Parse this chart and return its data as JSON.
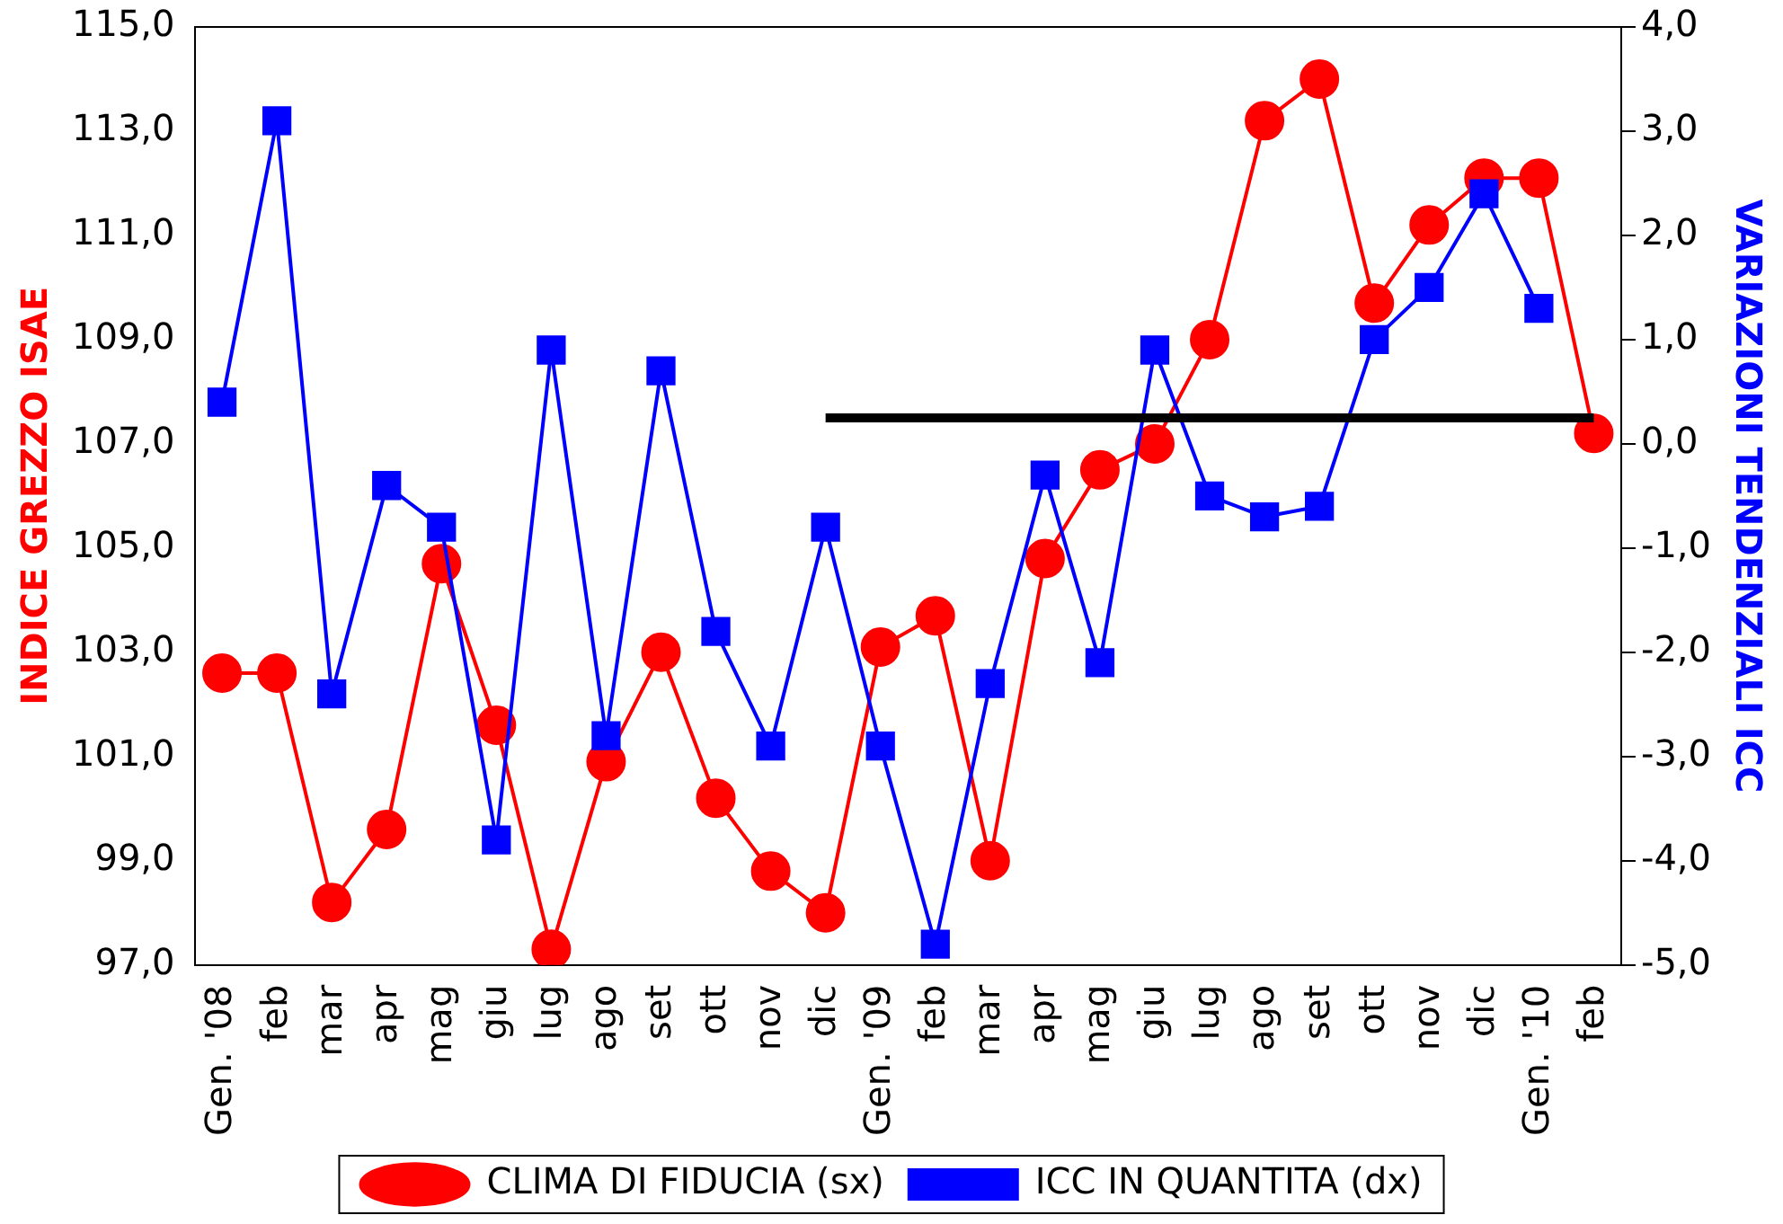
{
  "chart_data": {
    "type": "line",
    "ylabel": "INDICE GREZZO ISAE",
    "y2label": "VARIAZIONI TENDENZIALI ICC",
    "categories": [
      "Gen. '08",
      "feb",
      "mar",
      "apr",
      "mag",
      "giu",
      "lug",
      "ago",
      "set",
      "ott",
      "nov",
      "dic",
      "Gen. '09",
      "feb",
      "mar",
      "apr",
      "mag",
      "giu",
      "lug",
      "ago",
      "set",
      "ott",
      "nov",
      "dic",
      "Gen. '10",
      "feb"
    ],
    "series": [
      {
        "name": "CLIMA DI FIDUCIA (sx)",
        "color": "#ff0000",
        "marker": "circle",
        "values": [
          102.6,
          102.6,
          98.2,
          99.6,
          104.7,
          101.6,
          97.3,
          100.9,
          103.0,
          100.2,
          98.8,
          98.0,
          103.1,
          103.7,
          99.0,
          104.8,
          106.5,
          107.0,
          109.0,
          113.2,
          114.0,
          109.7,
          111.2,
          112.1,
          112.1,
          107.2
        ]
      },
      {
        "name": "ICC IN QUANTITA (dx)",
        "color": "#0000ff",
        "marker": "square",
        "axis": "y2",
        "values": [
          0.4,
          3.1,
          -2.4,
          -0.4,
          -0.8,
          -3.8,
          0.9,
          -2.8,
          0.7,
          -1.8,
          -2.9,
          -0.8,
          -2.9,
          -4.8,
          -2.3,
          -0.3,
          -2.1,
          0.9,
          -0.5,
          -0.7,
          -0.6,
          1.0,
          1.5,
          2.4,
          1.3,
          null
        ]
      },
      {
        "color": "#000000",
        "marker": "none",
        "values": [
          null,
          null,
          null,
          null,
          null,
          null,
          null,
          null,
          null,
          null,
          null,
          107.5,
          107.5,
          107.5,
          107.5,
          107.5,
          107.5,
          107.5,
          107.5,
          107.5,
          107.5,
          107.5,
          107.5,
          107.5,
          107.5,
          107.5
        ]
      }
    ],
    "ylim": [
      97,
      115
    ],
    "yticks": [
      {
        "value": 97,
        "label": "97,0"
      },
      {
        "value": 99,
        "label": "99,0"
      },
      {
        "value": 101,
        "label": "101,0"
      },
      {
        "value": 103,
        "label": "103,0"
      },
      {
        "value": 105,
        "label": "105,0"
      },
      {
        "value": 107,
        "label": "107,0"
      },
      {
        "value": 109,
        "label": "109,0"
      },
      {
        "value": 111,
        "label": "111,0"
      },
      {
        "value": 113,
        "label": "113,0"
      },
      {
        "value": 115,
        "label": "115,0"
      }
    ],
    "y2lim": [
      -5,
      4
    ],
    "y2ticks": [
      {
        "value": -5,
        "label": "-5,0"
      },
      {
        "value": -4,
        "label": "-4,0"
      },
      {
        "value": -3,
        "label": "-3,0"
      },
      {
        "value": -2,
        "label": "-2,0"
      },
      {
        "value": -1,
        "label": "-1,0"
      },
      {
        "value": 0,
        "label": "0,0"
      },
      {
        "value": 1,
        "label": "1,0"
      },
      {
        "value": 2,
        "label": "2,0"
      },
      {
        "value": 3,
        "label": "3,0"
      },
      {
        "value": 4,
        "label": "4,0"
      }
    ],
    "grid": false,
    "legend": "bottom"
  }
}
